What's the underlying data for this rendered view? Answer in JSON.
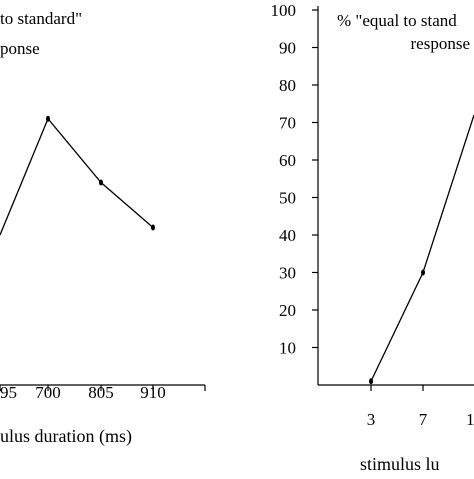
{
  "chart_data": [
    {
      "type": "line",
      "title_lines": [
        "to standard\"",
        "ponse"
      ],
      "xlabel": "ulus duration (ms)",
      "categories": [
        "95",
        "700",
        "805",
        "910"
      ],
      "values": [
        40,
        71,
        54,
        42
      ],
      "ylim": [
        0,
        100
      ],
      "color": "#000000"
    },
    {
      "type": "line",
      "title_lines": [
        "%  \"equal to stand",
        "response"
      ],
      "xlabel": "stimulus lu",
      "yticks": [
        "10",
        "20",
        "30",
        "40",
        "50",
        "60",
        "70",
        "80",
        "90",
        "100"
      ],
      "categories": [
        "3",
        "7",
        "1"
      ],
      "values": [
        1,
        30,
        72
      ],
      "ylim": [
        0,
        100
      ],
      "color": "#000000"
    }
  ]
}
